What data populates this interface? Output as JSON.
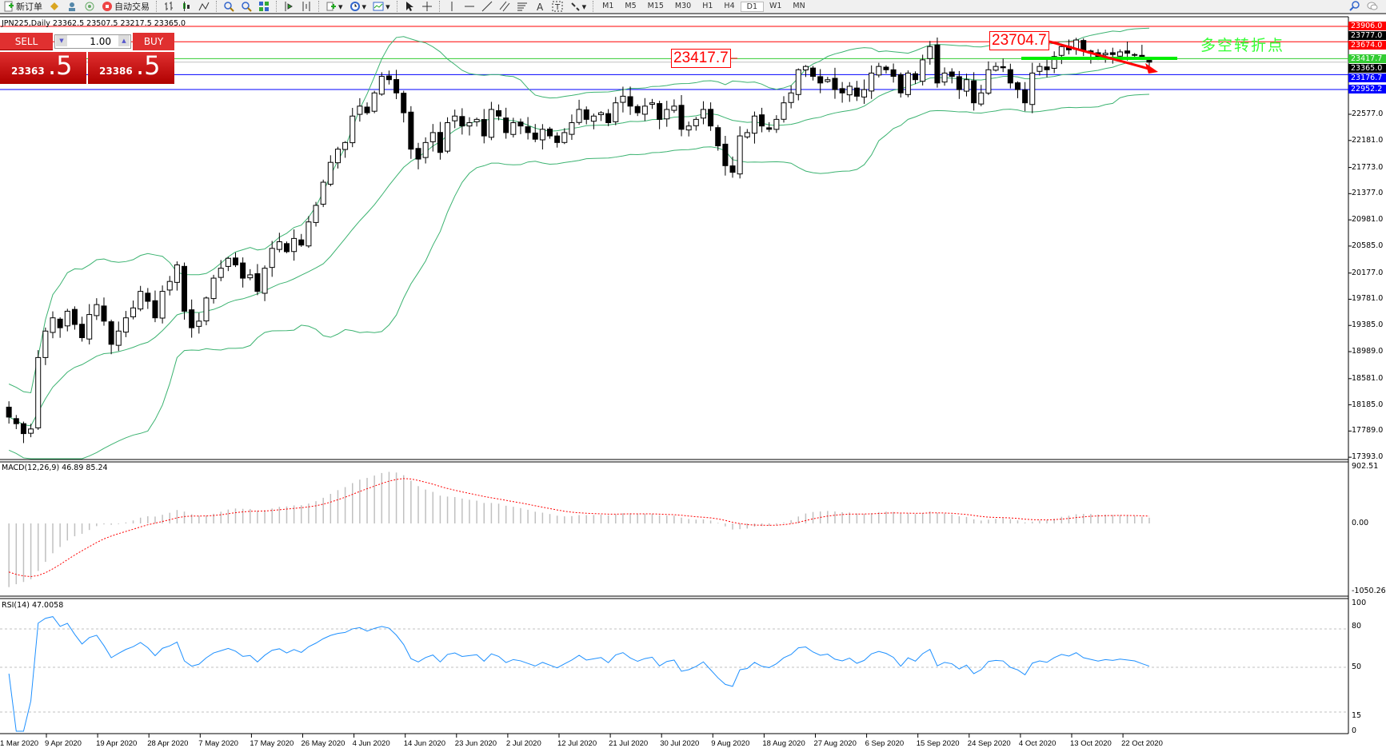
{
  "toolbar": {
    "new_order": "新订单",
    "auto_trading": "自动交易",
    "timeframes": [
      "M1",
      "M5",
      "M15",
      "M30",
      "H1",
      "H4",
      "D1",
      "W1",
      "MN"
    ],
    "active_timeframe": "D1",
    "icons": [
      "zoom-in-icon",
      "zoom-out-icon",
      "tile-icon",
      "bar-chart-icon",
      "candle-chart-icon",
      "line-chart-icon",
      "indicators-icon",
      "periods-icon",
      "templates-icon",
      "cursor-icon",
      "crosshair-icon",
      "vertical-line-icon",
      "horizontal-line-icon",
      "trendline-icon",
      "fibonacci-icon",
      "channel-icon",
      "text-icon",
      "label-icon",
      "arrows-icon",
      "search-icon",
      "chat-icon"
    ]
  },
  "chart": {
    "header": "JPN225,Daily  23362.5 23507.5 23217.5 23365.0",
    "symbol": "JPN225",
    "period": "Daily"
  },
  "trade_panel": {
    "sell": "SELL",
    "buy": "BUY",
    "lot": "1.00",
    "sell_small": "23363",
    "sell_big": ".5",
    "buy_small": "23386",
    "buy_big": ".5"
  },
  "annotations": {
    "a1": "23417.7",
    "a2": "23704.7",
    "note": "多空转折点"
  },
  "price_axis": [
    "22577.0",
    "22181.0",
    "21773.0",
    "21377.0",
    "20981.0",
    "20585.0",
    "20177.0",
    "19781.0",
    "19385.0",
    "18989.0",
    "18581.0",
    "18185.0",
    "17789.0",
    "17393.0"
  ],
  "price_tags": [
    {
      "text": "23906.0",
      "color": "#ff0000",
      "price": 23906
    },
    {
      "text": "23777.0",
      "color": "#000000",
      "price": 23777
    },
    {
      "text": "23674.0",
      "color": "#ff0000",
      "price": 23674
    },
    {
      "text": "23417.7",
      "color": "#33cc33",
      "price": 23417.7
    },
    {
      "text": "23365.0",
      "color": "#000000",
      "price": 23365
    },
    {
      "text": "23176.7",
      "color": "#0000ff",
      "price": 23176.7
    },
    {
      "text": "22952.2",
      "color": "#0000ff",
      "price": 22952.2
    }
  ],
  "hlines": [
    {
      "price": 23906,
      "color": "#ff0000"
    },
    {
      "price": 23674,
      "color": "#ff0000"
    },
    {
      "price": 23417.7,
      "color": "#33cc33"
    },
    {
      "price": 23365,
      "color": "#c0c0c0"
    },
    {
      "price": 23176.7,
      "color": "#0000ff"
    },
    {
      "price": 22952.2,
      "color": "#0000ff"
    }
  ],
  "macd": {
    "label": "MACD(12,26,9) 46.89 85.24",
    "axis": [
      "902.51",
      "0.00",
      "-1050.26"
    ]
  },
  "rsi": {
    "label": "RSI(14) 47.0058",
    "axis": [
      "100",
      "80",
      "50",
      "15",
      "0"
    ]
  },
  "dates": [
    "1 Mar 2020",
    "9 Apr 2020",
    "19 Apr 2020",
    "28 Apr 2020",
    "7 May 2020",
    "17 May 2020",
    "26 May 2020",
    "4 Jun 2020",
    "14 Jun 2020",
    "23 Jun 2020",
    "2 Jul 2020",
    "12 Jul 2020",
    "21 Jul 2020",
    "30 Jul 2020",
    "9 Aug 2020",
    "18 Aug 2020",
    "27 Aug 2020",
    "6 Sep 2020",
    "15 Sep 2020",
    "24 Sep 2020",
    "4 Oct 2020",
    "13 Oct 2020",
    "22 Oct 2020"
  ],
  "chart_data": {
    "type": "candlestick",
    "indicators": [
      "Bollinger Bands",
      "MACD(12,26,9)",
      "RSI(14)"
    ],
    "ylim": [
      17393,
      23906
    ],
    "closes": [
      18000,
      17900,
      17750,
      17820,
      18900,
      19300,
      19500,
      19350,
      19600,
      19400,
      19200,
      19550,
      19700,
      19450,
      19100,
      19300,
      19500,
      19650,
      19900,
      19750,
      19500,
      19900,
      20050,
      20300,
      19600,
      19350,
      19450,
      19800,
      20100,
      20250,
      20400,
      20300,
      20100,
      20150,
      19900,
      20250,
      20550,
      20650,
      20500,
      20700,
      20600,
      20950,
      21200,
      21550,
      21850,
      22050,
      22150,
      22550,
      22700,
      22600,
      22900,
      23150,
      23100,
      22900,
      22600,
      22050,
      21900,
      22150,
      22300,
      22000,
      22450,
      22550,
      22400,
      22450,
      22500,
      22250,
      22650,
      22550,
      22300,
      22450,
      22400,
      22300,
      22200,
      22350,
      22250,
      22150,
      22300,
      22450,
      22650,
      22500,
      22550,
      22600,
      22450,
      22750,
      22850,
      22700,
      22600,
      22700,
      22750,
      22500,
      22650,
      22700,
      22350,
      22400,
      22500,
      22650,
      22400,
      22100,
      21800,
      21700,
      22250,
      22300,
      22550,
      22400,
      22350,
      22500,
      22750,
      22900,
      23250,
      23300,
      23150,
      23050,
      23100,
      22950,
      22900,
      23000,
      22850,
      22950,
      23200,
      23300,
      23250,
      23150,
      22900,
      23200,
      23100,
      23400,
      23600,
      23050,
      23200,
      23150,
      22950,
      23100,
      22750,
      22900,
      23250,
      23300,
      23280,
      23050,
      22950,
      22750,
      23200,
      23300,
      23250,
      23450,
      23600,
      23550,
      23700,
      23550,
      23500,
      23450,
      23500,
      23480,
      23520,
      23500,
      23480,
      23420,
      23365
    ]
  }
}
